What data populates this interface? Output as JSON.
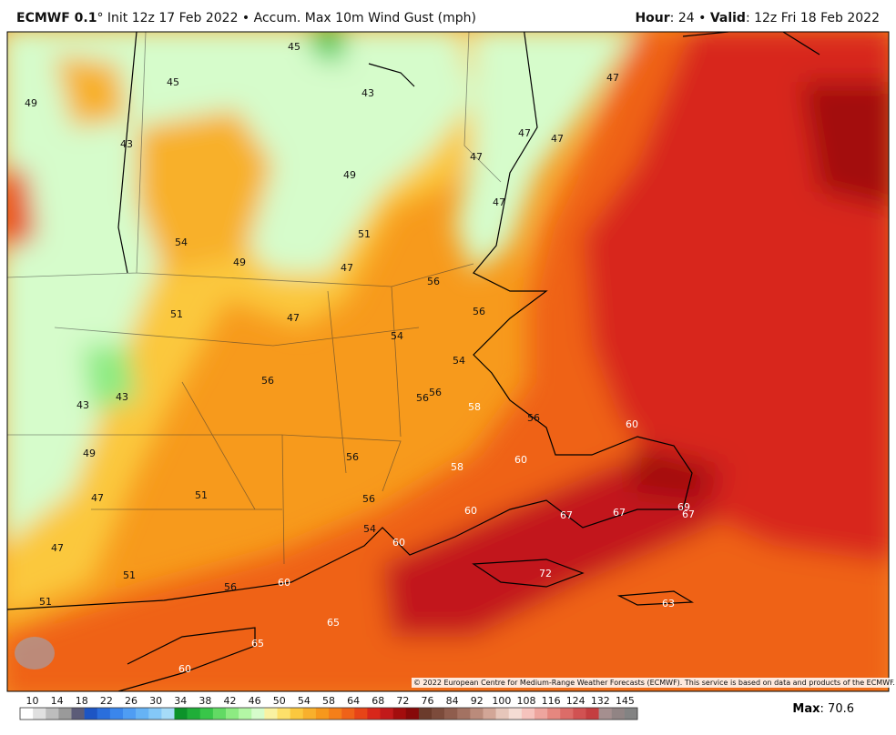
{
  "header": {
    "model": "ECMWF 0.1",
    "description": "° Init 12z 17 Feb 2022 • Accum. Max 10m Wind Gust (mph)",
    "hour_label": "Hour",
    "hour_value": ": 24 • ",
    "valid_label": "Valid",
    "valid_value": ": 12z Fri 18 Feb 2022"
  },
  "map": {
    "labels": [
      45,
      45,
      43,
      49,
      47,
      43,
      47,
      47,
      47,
      49,
      47,
      51,
      54,
      49,
      47,
      56,
      51,
      47,
      56,
      54,
      54,
      56,
      56,
      56,
      43,
      43,
      58,
      56,
      60,
      49,
      56,
      58,
      60,
      51,
      56,
      47,
      60,
      67,
      67,
      69,
      67,
      54,
      60,
      47,
      51,
      72,
      56,
      60,
      51,
      63,
      65,
      65,
      60
    ],
    "copyright": "© 2022 European Centre for Medium-Range Weather Forecasts (ECMWF). This service is based on data and products of the ECMWF."
  },
  "colorbar": {
    "ticks": [
      10,
      14,
      18,
      22,
      26,
      30,
      34,
      38,
      42,
      46,
      50,
      54,
      58,
      64,
      68,
      72,
      76,
      84,
      92,
      100,
      108,
      116,
      124,
      132,
      145
    ],
    "colors": [
      "#ffffff",
      "#e0e0e0",
      "#bdbdbd",
      "#9a9a9a",
      "#5c5c78",
      "#1d55c4",
      "#2a6edc",
      "#3a86ec",
      "#4f9df3",
      "#66b3f5",
      "#84c8f7",
      "#a6dcf8",
      "#0c932a",
      "#1fae38",
      "#38c649",
      "#62da64",
      "#8deb82",
      "#b3f6a5",
      "#d6fccb",
      "#f9f2a2",
      "#fde06a",
      "#fbc83e",
      "#f8b02c",
      "#f6981c",
      "#f47f19",
      "#ef6218",
      "#e74417",
      "#d8271a",
      "#c2191a",
      "#a30d0d",
      "#870909",
      "#6b3b2b",
      "#7c4b3b",
      "#8f5d4d",
      "#a37262",
      "#ba8b7b",
      "#d2a697",
      "#e6c6ba",
      "#f4dcd4",
      "#f6c3bd",
      "#ee a59e",
      "#e5877f",
      "#dc6c68",
      "#d15252",
      "#c43e40",
      "#a58f8f",
      "#918484",
      "#838383"
    ]
  },
  "max": {
    "label": "Max",
    "value": ": 70.6"
  }
}
